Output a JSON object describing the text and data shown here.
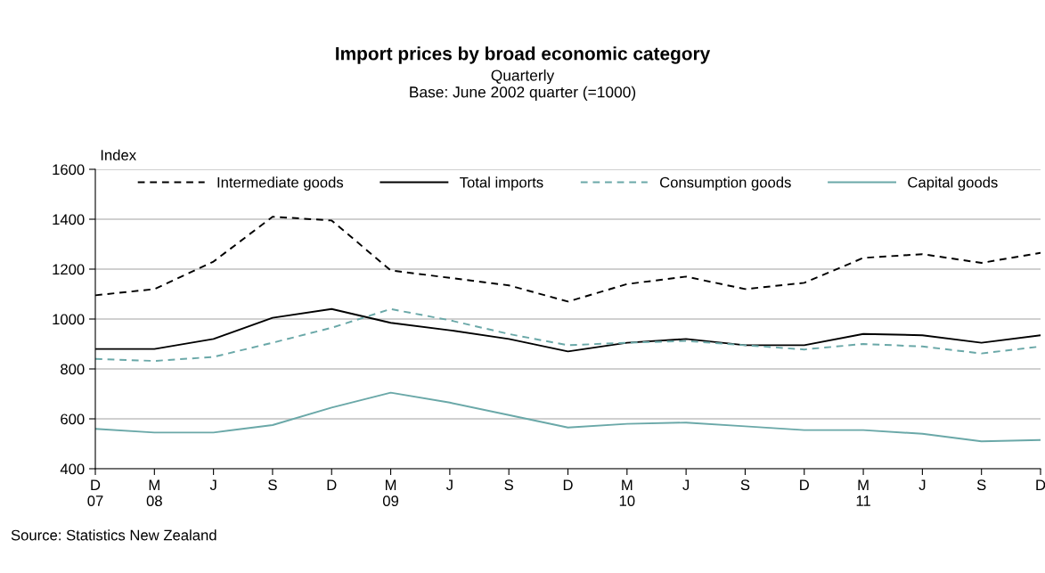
{
  "chart_data": {
    "type": "line",
    "title": "Import prices by broad economic category",
    "subtitle": "Quarterly\nBase: June 2002 quarter (=1000)",
    "ylabel": "Index",
    "categories": [
      "D\n07",
      "M\n08",
      "J",
      "S",
      "D",
      "M\n09",
      "J",
      "S",
      "D",
      "M\n10",
      "J",
      "S",
      "D",
      "M\n11",
      "J",
      "S",
      "D"
    ],
    "series": [
      {
        "name": "Intermediate goods",
        "color": "#000000",
        "line_style": "dashed",
        "values": [
          1095,
          1120,
          1230,
          1410,
          1395,
          1195,
          1165,
          1135,
          1070,
          1140,
          1170,
          1120,
          1145,
          1245,
          1260,
          1225,
          1265
        ]
      },
      {
        "name": "Total imports",
        "color": "#000000",
        "line_style": "solid",
        "values": [
          880,
          880,
          920,
          1005,
          1040,
          985,
          955,
          920,
          870,
          905,
          920,
          895,
          895,
          940,
          935,
          905,
          935
        ]
      },
      {
        "name": "Consumption goods",
        "color": "#6aa8a8",
        "line_style": "dashed",
        "values": [
          840,
          832,
          848,
          905,
          965,
          1040,
          995,
          940,
          895,
          905,
          912,
          895,
          878,
          900,
          890,
          862,
          890
        ]
      },
      {
        "name": "Capital goods",
        "color": "#6aa8a8",
        "line_style": "solid",
        "values": [
          560,
          545,
          545,
          575,
          645,
          705,
          665,
          615,
          565,
          580,
          585,
          570,
          555,
          555,
          540,
          510,
          515
        ]
      }
    ],
    "ylim": [
      400,
      1600
    ],
    "yticks": [
      400,
      600,
      800,
      1000,
      1200,
      1400,
      1600
    ],
    "grid": "y",
    "legend": "top",
    "marker": "none",
    "annotations": [
      "Source: Statistics New Zealand"
    ]
  }
}
